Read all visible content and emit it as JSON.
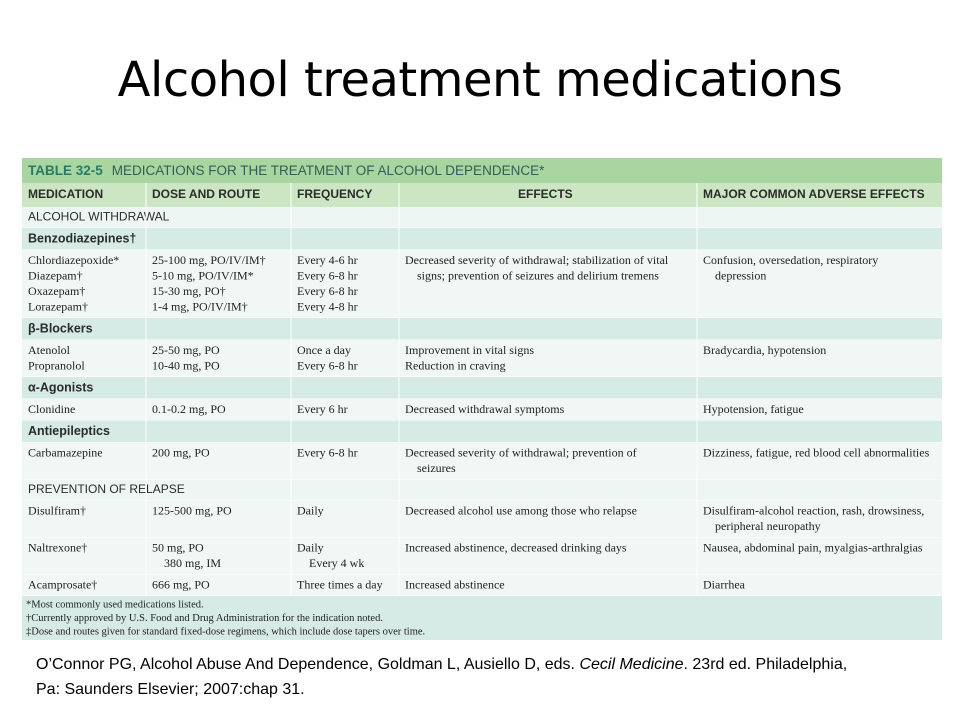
{
  "slide": {
    "title": "Alcohol treatment medications",
    "table": {
      "label": "TABLE 32-5",
      "caption": "MEDICATIONS FOR THE TREATMENT OF ALCOHOL DEPENDENCE*",
      "columns": [
        "MEDICATION",
        "DOSE AND ROUTE",
        "FREQUENCY",
        "EFFECTS",
        "MAJOR COMMON ADVERSE EFFECTS"
      ],
      "rows": [
        {
          "heading": "ALCOHOL WITHDRAWAL"
        },
        {
          "group": "Benzodiazepines†"
        },
        {
          "cells": [
            [
              [
                "Chlordiazepoxide*"
              ],
              [
                "Diazepam†"
              ],
              [
                "Oxazepam†"
              ],
              [
                "Lorazepam†"
              ]
            ],
            [
              [
                "25-100 mg, PO/IV/IM†"
              ],
              [
                "5-10 mg, PO/IV/IM*"
              ],
              [
                "15-30 mg, PO†"
              ],
              [
                "1-4 mg, PO/IV/IM†"
              ]
            ],
            [
              [
                "Every 4-6 hr"
              ],
              [
                "Every 6-8 hr"
              ],
              [
                "Every 6-8 hr"
              ],
              [
                "Every 4-8 hr"
              ]
            ],
            [
              [
                "Decreased severity of withdrawal; stabilization of vital",
                "signs; prevention of seizures and delirium tremens"
              ]
            ],
            [
              [
                "Confusion, oversedation, respiratory",
                "depression"
              ]
            ]
          ]
        },
        {
          "group": "β-Blockers"
        },
        {
          "cells": [
            [
              [
                "Atenolol"
              ],
              [
                "Propranolol"
              ]
            ],
            [
              [
                "25-50 mg, PO"
              ],
              [
                "10-40 mg, PO"
              ]
            ],
            [
              [
                "Once a day"
              ],
              [
                "Every 6-8 hr"
              ]
            ],
            [
              [
                "Improvement in vital signs"
              ],
              [
                "Reduction in craving"
              ]
            ],
            [
              [
                "Bradycardia, hypotension"
              ]
            ]
          ]
        },
        {
          "group": "α-Agonists"
        },
        {
          "cells": [
            [
              [
                "Clonidine"
              ]
            ],
            [
              [
                "0.1-0.2 mg, PO"
              ]
            ],
            [
              [
                "Every 6 hr"
              ]
            ],
            [
              [
                "Decreased withdrawal symptoms"
              ]
            ],
            [
              [
                "Hypotension, fatigue"
              ]
            ]
          ]
        },
        {
          "group": "Antiepileptics"
        },
        {
          "cells": [
            [
              [
                "Carbamazepine"
              ]
            ],
            [
              [
                "200 mg, PO"
              ]
            ],
            [
              [
                "Every 6-8 hr"
              ]
            ],
            [
              [
                "Decreased severity of withdrawal; prevention of",
                "seizures"
              ]
            ],
            [
              [
                "Dizziness, fatigue, red blood cell abnormalities"
              ]
            ]
          ]
        },
        {
          "heading": "PREVENTION OF RELAPSE"
        },
        {
          "cells": [
            [
              [
                "Disulfiram†"
              ]
            ],
            [
              [
                "125-500 mg, PO"
              ]
            ],
            [
              [
                "Daily"
              ]
            ],
            [
              [
                "Decreased alcohol use among those who relapse"
              ]
            ],
            [
              [
                "Disulfiram-alcohol reaction, rash, drowsiness,",
                "peripheral neuropathy"
              ]
            ]
          ]
        },
        {
          "cells": [
            [
              [
                "Naltrexone†"
              ]
            ],
            [
              [
                "50 mg, PO",
                "380 mg, IM"
              ]
            ],
            [
              [
                "Daily",
                "Every 4 wk"
              ]
            ],
            [
              [
                "Increased abstinence, decreased drinking days"
              ]
            ],
            [
              [
                "Nausea, abdominal pain, myalgias-arthralgias"
              ]
            ]
          ]
        },
        {
          "cells": [
            [
              [
                "Acamprosate†"
              ]
            ],
            [
              [
                "666 mg, PO"
              ]
            ],
            [
              [
                "Three times a day"
              ]
            ],
            [
              [
                "Increased abstinence"
              ]
            ],
            [
              [
                "Diarrhea"
              ]
            ]
          ]
        }
      ],
      "footnotes": [
        "*Most commonly used medications listed.",
        "†Currently approved by U.S. Food and Drug Administration for the indication noted.",
        "‡Dose and routes given for standard fixed-dose regimens, which include dose tapers over time."
      ]
    },
    "citation": {
      "before": "O’Connor PG, Alcohol Abuse And Dependence, Goldman L, Ausiello D, eds. ",
      "italic": "Cecil Medicine",
      "after": ". 23rd ed. Philadelphia, Pa: Saunders Elsevier; 2007:chap 31."
    }
  }
}
